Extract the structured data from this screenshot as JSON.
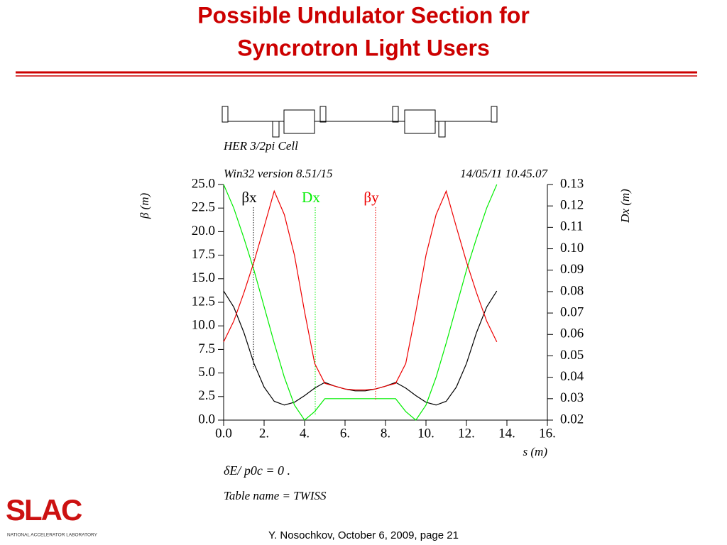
{
  "header": {
    "title": [
      "Possible Undulator Section for",
      "Syncrotron Light Users"
    ]
  },
  "chart_data": {
    "type": "line",
    "title": "HER 3/2pi Cell",
    "subtitle": "Win32 version 8.51/15",
    "timestamp": "14/05/11  10.45.07",
    "ylabel": "β (m)",
    "y2label": "Dx (m)",
    "xlabel": "s (m)",
    "x": [
      0,
      0.5,
      1,
      1.5,
      2,
      2.5,
      3,
      3.5,
      4,
      4.5,
      5,
      5.5,
      6,
      6.5,
      7,
      7.5,
      8,
      8.5,
      9,
      9.5,
      10,
      10.5,
      11,
      11.5,
      12,
      12.5,
      13,
      13.5
    ],
    "series": [
      {
        "name": "βx",
        "color": "#000000",
        "values": [
          13.7,
          12.0,
          9.3,
          6.0,
          3.5,
          2.0,
          1.6,
          1.9,
          2.6,
          3.4,
          4.0,
          3.6,
          3.3,
          3.1,
          3.1,
          3.3,
          3.6,
          4.0,
          3.4,
          2.6,
          1.9,
          1.6,
          2.0,
          3.5,
          6.0,
          9.3,
          12.0,
          13.7
        ]
      },
      {
        "name": "Dx",
        "color": "#00ee00",
        "axis": "y2",
        "values": [
          0.13,
          0.119,
          0.105,
          0.09,
          0.073,
          0.056,
          0.04,
          0.027,
          0.02,
          0.024,
          0.03,
          0.03,
          0.03,
          0.03,
          0.03,
          0.03,
          0.03,
          0.03,
          0.024,
          0.02,
          0.027,
          0.04,
          0.056,
          0.073,
          0.09,
          0.105,
          0.119,
          0.13
        ]
      },
      {
        "name": "βy",
        "color": "#ee0000",
        "values": [
          8.3,
          10.5,
          13.5,
          16.8,
          20.5,
          24.3,
          21.8,
          17.5,
          11.5,
          6.0,
          3.9,
          3.6,
          3.3,
          3.2,
          3.2,
          3.3,
          3.6,
          3.9,
          6.0,
          11.5,
          17.5,
          21.8,
          24.3,
          20.5,
          16.8,
          13.5,
          10.5,
          8.3
        ]
      }
    ],
    "xlim": [
      0,
      16
    ],
    "ylim": [
      0,
      25
    ],
    "y2lim": [
      0.02,
      0.13
    ],
    "xticks": [
      {
        "value": 0,
        "label": "0.0"
      },
      {
        "value": 2,
        "label": "2."
      },
      {
        "value": 4,
        "label": "4."
      },
      {
        "value": 6,
        "label": "6."
      },
      {
        "value": 8,
        "label": "8."
      },
      {
        "value": 10,
        "label": "10."
      },
      {
        "value": 12,
        "label": "12."
      },
      {
        "value": 14,
        "label": "14."
      },
      {
        "value": 16,
        "label": "16."
      }
    ],
    "yticks": [
      {
        "value": 0,
        "label": "0.0"
      },
      2.5,
      {
        "value": 5,
        "label": "5.0"
      },
      7.5,
      {
        "value": 10,
        "label": "10.0"
      },
      12.5,
      {
        "value": 15,
        "label": "15.0"
      },
      17.5,
      {
        "value": 20,
        "label": "20.0"
      },
      22.5,
      {
        "value": 25,
        "label": "25.0"
      }
    ],
    "y2ticks": [
      0.02,
      0.03,
      0.04,
      0.05,
      0.06,
      0.07,
      0.08,
      0.09,
      {
        "value": 0.1,
        "label": "0.10"
      },
      0.11,
      0.12,
      0.13
    ],
    "annotations": [
      "δE/ p0c = 0 .",
      "Table name = TWISS"
    ]
  },
  "footer": {
    "credit": "Y. Nosochkov, October 6, 2009,  page 21",
    "logo": "SLAC",
    "logo_subtitle": "NATIONAL ACCELERATOR LABORATORY"
  }
}
